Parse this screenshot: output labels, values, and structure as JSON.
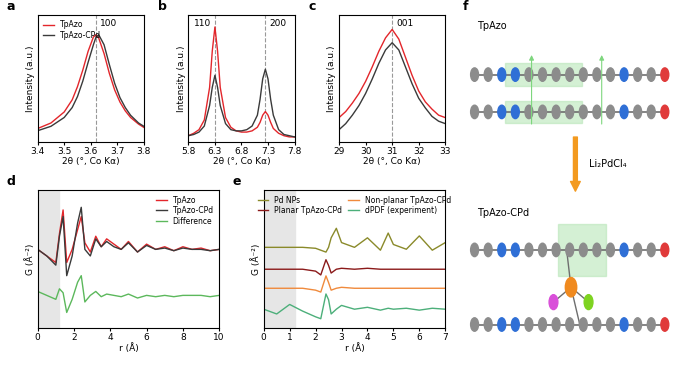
{
  "chart_data": [
    {
      "panel": "a",
      "type": "line",
      "x_label": "2θ (°, Co Kα)",
      "y_label": "Intensity (a.u.)",
      "x": [
        3.4,
        3.45,
        3.5,
        3.53,
        3.55,
        3.57,
        3.59,
        3.61,
        3.62,
        3.63,
        3.65,
        3.67,
        3.69,
        3.71,
        3.73,
        3.75,
        3.78,
        3.8
      ],
      "series": [
        {
          "name": "TpAzo",
          "color": "#e3262b",
          "values": [
            0.12,
            0.17,
            0.27,
            0.38,
            0.5,
            0.65,
            0.82,
            0.95,
            0.97,
            0.94,
            0.8,
            0.62,
            0.47,
            0.36,
            0.28,
            0.22,
            0.16,
            0.13
          ]
        },
        {
          "name": "TpAzo-CPd",
          "color": "#3a3a3a",
          "values": [
            0.1,
            0.14,
            0.22,
            0.31,
            0.41,
            0.55,
            0.72,
            0.88,
            0.95,
            0.97,
            0.88,
            0.7,
            0.53,
            0.4,
            0.31,
            0.24,
            0.17,
            0.14
          ]
        }
      ],
      "peaks": [
        {
          "label": "100",
          "x": 3.62
        }
      ],
      "xlim": [
        3.4,
        3.8
      ],
      "xticks": [
        3.4,
        3.5,
        3.6,
        3.7,
        3.8
      ],
      "ylim": [
        0,
        1.15
      ],
      "tick_labels": "x",
      "legend": "upper left"
    },
    {
      "panel": "b",
      "type": "line",
      "x_label": "2θ (°, Co Kα)",
      "y_label": "Intensity (a.u.)",
      "x": [
        5.8,
        5.9,
        6.0,
        6.1,
        6.2,
        6.25,
        6.3,
        6.35,
        6.4,
        6.5,
        6.6,
        6.7,
        6.8,
        6.9,
        7.0,
        7.1,
        7.15,
        7.2,
        7.25,
        7.3,
        7.35,
        7.4,
        7.5,
        7.6,
        7.7,
        7.8
      ],
      "series": [
        {
          "name": "TpAzo",
          "color": "#e3262b",
          "values": [
            0.05,
            0.07,
            0.1,
            0.18,
            0.45,
            0.75,
            0.95,
            0.75,
            0.45,
            0.2,
            0.12,
            0.09,
            0.08,
            0.08,
            0.09,
            0.12,
            0.16,
            0.22,
            0.25,
            0.22,
            0.16,
            0.11,
            0.07,
            0.05,
            0.04,
            0.04
          ]
        },
        {
          "name": "TpAzo-CPd",
          "color": "#3a3a3a",
          "values": [
            0.05,
            0.06,
            0.08,
            0.13,
            0.3,
            0.45,
            0.55,
            0.45,
            0.3,
            0.15,
            0.1,
            0.09,
            0.09,
            0.1,
            0.13,
            0.22,
            0.35,
            0.52,
            0.6,
            0.52,
            0.35,
            0.22,
            0.1,
            0.06,
            0.05,
            0.04
          ]
        }
      ],
      "peaks": [
        {
          "label": "110",
          "x": 6.3
        },
        {
          "label": "200",
          "x": 7.25
        }
      ],
      "xlim": [
        5.8,
        7.8
      ],
      "xticks": [
        5.8,
        6.3,
        6.8,
        7.3,
        7.8
      ],
      "ylim": [
        0,
        1.05
      ],
      "tick_labels": "x"
    },
    {
      "panel": "c",
      "type": "line",
      "x_label": "2θ (°, Co Kα)",
      "y_label": "Intensity (a.u.)",
      "x": [
        29.0,
        29.25,
        29.5,
        29.75,
        30.0,
        30.25,
        30.5,
        30.75,
        31.0,
        31.25,
        31.5,
        31.75,
        32.0,
        32.25,
        32.5,
        32.75,
        33.0
      ],
      "series": [
        {
          "name": "TpAzo",
          "color": "#e3262b",
          "values": [
            0.2,
            0.25,
            0.32,
            0.4,
            0.5,
            0.62,
            0.75,
            0.86,
            0.93,
            0.85,
            0.7,
            0.55,
            0.42,
            0.33,
            0.27,
            0.22,
            0.2
          ]
        },
        {
          "name": "TpAzo-CPd",
          "color": "#3a3a3a",
          "values": [
            0.1,
            0.15,
            0.22,
            0.3,
            0.4,
            0.52,
            0.65,
            0.76,
            0.82,
            0.76,
            0.62,
            0.48,
            0.36,
            0.28,
            0.21,
            0.17,
            0.15
          ]
        }
      ],
      "peaks": [
        {
          "label": "001",
          "x": 31
        }
      ],
      "xlim": [
        29,
        33
      ],
      "xticks": [
        29,
        30,
        31,
        32,
        33
      ],
      "ylim": [
        0,
        1.05
      ],
      "tick_labels": "x"
    },
    {
      "panel": "d",
      "type": "line",
      "x_label": "r (Å)",
      "y_label": "G (Å⁻²)",
      "x": [
        0,
        0.5,
        1.0,
        1.2,
        1.4,
        1.6,
        1.9,
        2.2,
        2.4,
        2.6,
        2.9,
        3.2,
        3.5,
        3.8,
        4.2,
        4.6,
        5.0,
        5.5,
        6.0,
        6.5,
        7.0,
        7.5,
        8.0,
        8.5,
        9.0,
        9.5,
        10
      ],
      "series": [
        {
          "name": "TpAzo",
          "color": "#e3262b",
          "values": [
            0.6,
            0.55,
            0.5,
            0.72,
            0.9,
            0.5,
            0.6,
            0.75,
            0.85,
            0.65,
            0.58,
            0.7,
            0.62,
            0.68,
            0.64,
            0.6,
            0.66,
            0.58,
            0.64,
            0.6,
            0.62,
            0.59,
            0.62,
            0.6,
            0.61,
            0.59,
            0.6
          ]
        },
        {
          "name": "TpAzo-CPd",
          "color": "#3a3a3a",
          "values": [
            0.6,
            0.55,
            0.48,
            0.7,
            0.85,
            0.4,
            0.55,
            0.8,
            0.92,
            0.6,
            0.55,
            0.68,
            0.62,
            0.66,
            0.62,
            0.6,
            0.65,
            0.58,
            0.63,
            0.6,
            0.61,
            0.59,
            0.61,
            0.6,
            0.6,
            0.59,
            0.6
          ]
        },
        {
          "name": "Difference",
          "color": "#5cb85c",
          "values": [
            0.28,
            0.25,
            0.22,
            0.3,
            0.27,
            0.12,
            0.22,
            0.35,
            0.4,
            0.2,
            0.25,
            0.28,
            0.24,
            0.26,
            0.25,
            0.24,
            0.26,
            0.23,
            0.25,
            0.24,
            0.25,
            0.24,
            0.25,
            0.25,
            0.25,
            0.24,
            0.25
          ]
        }
      ],
      "shaded_region": [
        0,
        1.2
      ],
      "xlim": [
        0,
        10
      ],
      "xticks": [
        0,
        2,
        4,
        6,
        8,
        10
      ],
      "ylim": [
        0,
        1.05
      ],
      "tick_labels": "x",
      "legend": "upper right"
    },
    {
      "panel": "e",
      "type": "line",
      "x_label": "r (Å)",
      "y_label": "G (Å⁻²)",
      "x": [
        0,
        0.5,
        1.0,
        1.5,
        2.0,
        2.2,
        2.4,
        2.5,
        2.6,
        2.8,
        3.0,
        3.5,
        4.0,
        4.5,
        4.8,
        5.0,
        5.5,
        6.0,
        6.5,
        7.0
      ],
      "series": [
        {
          "name": "Pd NPs",
          "color": "#8a8a2a",
          "values": [
            0.85,
            0.85,
            0.85,
            0.85,
            0.84,
            0.82,
            0.8,
            0.85,
            0.95,
            1.05,
            0.9,
            0.85,
            0.95,
            0.82,
            1.0,
            0.88,
            0.83,
            0.97,
            0.82,
            0.9
          ]
        },
        {
          "name": "Planar TpAzo-CPd",
          "color": "#8b1a1a",
          "values": [
            0.62,
            0.62,
            0.62,
            0.62,
            0.6,
            0.56,
            0.72,
            0.66,
            0.58,
            0.62,
            0.63,
            0.62,
            0.63,
            0.62,
            0.62,
            0.62,
            0.62,
            0.62,
            0.62,
            0.62
          ]
        },
        {
          "name": "Non-planar TpAzo-CPd",
          "color": "#f08a3c",
          "values": [
            0.42,
            0.42,
            0.42,
            0.42,
            0.4,
            0.38,
            0.55,
            0.48,
            0.4,
            0.42,
            0.43,
            0.42,
            0.42,
            0.42,
            0.42,
            0.42,
            0.42,
            0.42,
            0.42,
            0.42
          ]
        },
        {
          "name": "dPDF (experiment)",
          "color": "#4caf7a",
          "values": [
            0.2,
            0.15,
            0.25,
            0.18,
            0.12,
            0.1,
            0.36,
            0.3,
            0.15,
            0.2,
            0.24,
            0.2,
            0.22,
            0.19,
            0.21,
            0.2,
            0.21,
            0.19,
            0.21,
            0.2
          ]
        }
      ],
      "shaded_region": [
        0,
        1.2
      ],
      "xlim": [
        0,
        7
      ],
      "xticks": [
        0,
        1,
        2,
        3,
        4,
        5,
        6,
        7
      ],
      "ylim": [
        0,
        1.45
      ],
      "tick_labels": "x",
      "legend": "upper center"
    }
  ],
  "diagram": {
    "panel": "f",
    "top_label": "TpAzo",
    "reagent": "Li₂PdCl₄",
    "bottom_label": "TpAzo-CPd"
  }
}
